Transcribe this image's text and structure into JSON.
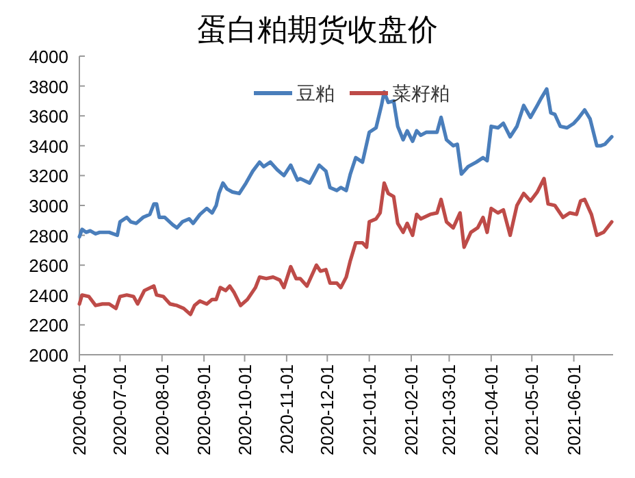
{
  "chart_data": {
    "type": "line",
    "title": "蛋白粕期货收盘价",
    "legend": "top",
    "grid": false,
    "marker": "none",
    "line_style": "solid",
    "xlim": [
      "2020-06-01",
      "2021-06-30"
    ],
    "xticks": [
      "2020-06-01",
      "2020-07-01",
      "2020-08-01",
      "2020-09-01",
      "2020-10-01",
      "2020-11-01",
      "2020-12-01",
      "2021-01-01",
      "2021-02-01",
      "2021-03-01",
      "2021-04-01",
      "2021-05-01",
      "2021-06-01"
    ],
    "ylim": [
      2000,
      4000
    ],
    "yticks": [
      2000,
      2200,
      2400,
      2600,
      2800,
      3000,
      3200,
      3400,
      3600,
      3800,
      4000
    ],
    "series": [
      {
        "name": "豆粕",
        "color": "#4a7ebb",
        "x": [
          "2020-06-01",
          "2020-06-03",
          "2020-06-06",
          "2020-06-09",
          "2020-06-13",
          "2020-06-16",
          "2020-06-23",
          "2020-06-29",
          "2020-07-01",
          "2020-07-06",
          "2020-07-09",
          "2020-07-13",
          "2020-07-18",
          "2020-07-23",
          "2020-07-26",
          "2020-07-28",
          "2020-07-30",
          "2020-08-03",
          "2020-08-09",
          "2020-08-12",
          "2020-08-16",
          "2020-08-21",
          "2020-08-24",
          "2020-08-29",
          "2020-09-03",
          "2020-09-07",
          "2020-09-10",
          "2020-09-12",
          "2020-09-15",
          "2020-09-18",
          "2020-09-22",
          "2020-09-27",
          "2020-10-02",
          "2020-10-07",
          "2020-10-12",
          "2020-10-15",
          "2020-10-20",
          "2020-10-25",
          "2020-10-30",
          "2020-11-04",
          "2020-11-09",
          "2020-11-11",
          "2020-11-18",
          "2020-11-25",
          "2020-11-30",
          "2020-12-03",
          "2020-12-08",
          "2020-12-11",
          "2020-12-15",
          "2020-12-18",
          "2020-12-22",
          "2020-12-27",
          "2021-01-01",
          "2021-01-06",
          "2021-01-10",
          "2021-01-12",
          "2021-01-15",
          "2021-01-19",
          "2021-01-22",
          "2021-01-26",
          "2021-01-29",
          "2021-02-02",
          "2021-02-05",
          "2021-02-08",
          "2021-02-12",
          "2021-02-20",
          "2021-02-23",
          "2021-02-27",
          "2021-03-04",
          "2021-03-07",
          "2021-03-10",
          "2021-03-15",
          "2021-03-21",
          "2021-03-26",
          "2021-03-29",
          "2021-04-01",
          "2021-04-06",
          "2021-04-10",
          "2021-04-15",
          "2021-04-20",
          "2021-04-25",
          "2021-04-30",
          "2021-05-05",
          "2021-05-08",
          "2021-05-12",
          "2021-05-15",
          "2021-05-18",
          "2021-05-22",
          "2021-05-27",
          "2021-06-01",
          "2021-06-04",
          "2021-06-09",
          "2021-06-13",
          "2021-06-18",
          "2021-06-21",
          "2021-06-24",
          "2021-06-29"
        ],
        "values": [
          2790,
          2840,
          2820,
          2830,
          2810,
          2820,
          2820,
          2800,
          2890,
          2920,
          2890,
          2880,
          2920,
          2940,
          3010,
          3010,
          2920,
          2920,
          2870,
          2850,
          2890,
          2910,
          2880,
          2940,
          2980,
          2950,
          3000,
          3080,
          3150,
          3110,
          3090,
          3080,
          3150,
          3230,
          3290,
          3260,
          3290,
          3240,
          3200,
          3270,
          3170,
          3180,
          3150,
          3270,
          3230,
          3120,
          3100,
          3120,
          3100,
          3210,
          3320,
          3290,
          3490,
          3520,
          3670,
          3760,
          3690,
          3700,
          3530,
          3440,
          3500,
          3430,
          3500,
          3470,
          3490,
          3490,
          3590,
          3440,
          3400,
          3410,
          3210,
          3260,
          3290,
          3320,
          3300,
          3530,
          3520,
          3550,
          3460,
          3530,
          3670,
          3590,
          3670,
          3720,
          3780,
          3620,
          3610,
          3530,
          3520,
          3550,
          3580,
          3640,
          3580,
          3400,
          3400,
          3410,
          3460
        ]
      },
      {
        "name": "菜籽粕",
        "color": "#be4b48",
        "x": [
          "2020-06-01",
          "2020-06-03",
          "2020-06-08",
          "2020-06-13",
          "2020-06-18",
          "2020-06-23",
          "2020-06-28",
          "2020-07-01",
          "2020-07-06",
          "2020-07-11",
          "2020-07-14",
          "2020-07-19",
          "2020-07-26",
          "2020-07-28",
          "2020-08-02",
          "2020-08-07",
          "2020-08-12",
          "2020-08-17",
          "2020-08-22",
          "2020-08-25",
          "2020-08-29",
          "2020-09-03",
          "2020-09-07",
          "2020-09-10",
          "2020-09-13",
          "2020-09-17",
          "2020-09-20",
          "2020-09-23",
          "2020-09-28",
          "2020-10-03",
          "2020-10-09",
          "2020-10-12",
          "2020-10-17",
          "2020-10-22",
          "2020-10-27",
          "2020-10-30",
          "2020-11-04",
          "2020-11-08",
          "2020-11-11",
          "2020-11-16",
          "2020-11-23",
          "2020-11-26",
          "2020-11-30",
          "2020-12-03",
          "2020-12-08",
          "2020-12-11",
          "2020-12-15",
          "2020-12-18",
          "2020-12-22",
          "2020-12-27",
          "2020-12-30",
          "2021-01-01",
          "2021-01-06",
          "2021-01-09",
          "2021-01-12",
          "2021-01-15",
          "2021-01-19",
          "2021-01-22",
          "2021-01-26",
          "2021-01-29",
          "2021-02-02",
          "2021-02-05",
          "2021-02-08",
          "2021-02-15",
          "2021-02-20",
          "2021-02-23",
          "2021-02-27",
          "2021-03-04",
          "2021-03-09",
          "2021-03-12",
          "2021-03-17",
          "2021-03-22",
          "2021-03-26",
          "2021-03-29",
          "2021-04-01",
          "2021-04-06",
          "2021-04-10",
          "2021-04-15",
          "2021-04-20",
          "2021-04-25",
          "2021-04-30",
          "2021-05-05",
          "2021-05-10",
          "2021-05-13",
          "2021-05-18",
          "2021-05-24",
          "2021-05-29",
          "2021-06-03",
          "2021-06-06",
          "2021-06-09",
          "2021-06-14",
          "2021-06-18",
          "2021-06-23",
          "2021-06-29"
        ],
        "values": [
          2340,
          2400,
          2390,
          2330,
          2340,
          2340,
          2310,
          2390,
          2400,
          2390,
          2340,
          2430,
          2460,
          2400,
          2390,
          2340,
          2330,
          2310,
          2270,
          2330,
          2360,
          2340,
          2370,
          2370,
          2450,
          2430,
          2460,
          2420,
          2330,
          2370,
          2450,
          2520,
          2510,
          2520,
          2500,
          2450,
          2590,
          2510,
          2510,
          2460,
          2600,
          2560,
          2570,
          2480,
          2480,
          2450,
          2520,
          2630,
          2750,
          2750,
          2720,
          2890,
          2910,
          2950,
          3150,
          3080,
          3060,
          2880,
          2820,
          2880,
          2800,
          2940,
          2910,
          2940,
          2950,
          3040,
          2890,
          2850,
          2950,
          2720,
          2820,
          2850,
          2920,
          2820,
          2980,
          2950,
          2970,
          2800,
          3000,
          3080,
          3030,
          3090,
          3180,
          3010,
          3000,
          2920,
          2950,
          2940,
          3030,
          3040,
          2940,
          2800,
          2820,
          2890
        ]
      }
    ]
  }
}
